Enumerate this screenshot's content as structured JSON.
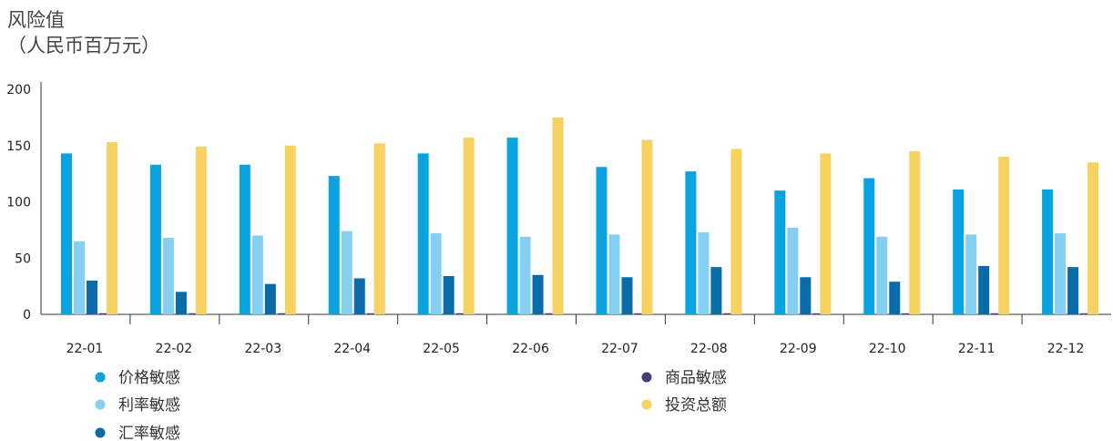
{
  "chart_data": {
    "type": "bar",
    "title": "风险值",
    "subtitle": "（人民币百万元）",
    "xlabel": "",
    "ylabel": "",
    "ylim": [
      0,
      200
    ],
    "yticks": [
      0,
      50,
      100,
      150,
      200
    ],
    "grid": false,
    "legend_position": "bottom",
    "categories": [
      "22-01",
      "22-02",
      "22-03",
      "22-04",
      "22-05",
      "22-06",
      "22-07",
      "22-08",
      "22-09",
      "22-10",
      "22-11",
      "22-12"
    ],
    "series": [
      {
        "name": "价格敏感",
        "color": "#0aa3e0",
        "values": [
          143,
          133,
          133,
          123,
          143,
          157,
          131,
          127,
          110,
          121,
          111,
          111
        ]
      },
      {
        "name": "利率敏感",
        "color": "#84cff2",
        "values": [
          65,
          68,
          70,
          74,
          72,
          69,
          71,
          73,
          77,
          69,
          71,
          72
        ]
      },
      {
        "name": "汇率敏感",
        "color": "#0b6aa8",
        "values": [
          30,
          20,
          27,
          32,
          34,
          35,
          33,
          42,
          33,
          29,
          43,
          42
        ]
      },
      {
        "name": "商品敏感",
        "color": "#4b3a7a",
        "values": [
          1,
          1,
          1,
          1,
          1,
          1,
          0,
          1,
          0,
          0,
          0,
          0
        ]
      },
      {
        "name": "投资总额",
        "color": "#f6d262",
        "values": [
          153,
          149,
          150,
          152,
          157,
          175,
          155,
          147,
          143,
          145,
          140,
          135
        ]
      }
    ]
  }
}
